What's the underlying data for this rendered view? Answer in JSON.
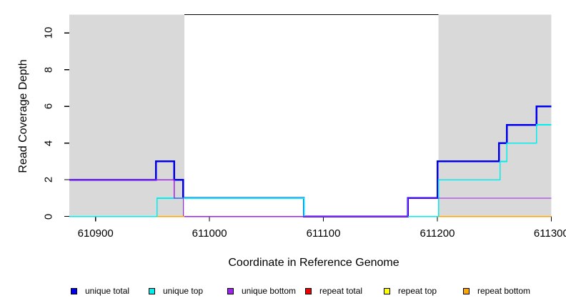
{
  "chart_data": {
    "type": "line",
    "subtype": "step-coverage",
    "title": "",
    "xlabel": "Coordinate in Reference Genome",
    "ylabel": "Read Coverage Depth",
    "xlim": [
      610877,
      611300
    ],
    "ylim": [
      0,
      11.1
    ],
    "x_ticks": [
      610900,
      611000,
      611100,
      611200,
      611300
    ],
    "y_ticks": [
      0,
      2,
      4,
      6,
      8,
      10
    ],
    "grid": false,
    "background_color": "#ffffff",
    "repeat_region_color": "#d9d9d9",
    "repeat_regions": [
      {
        "x1": 610877,
        "x2": 610978
      },
      {
        "x1": 611201,
        "x2": 611300
      }
    ],
    "unique_region_marker": {
      "x1": 610978,
      "x2": 611201,
      "y": 11.0,
      "color": "#000000"
    },
    "series": [
      {
        "name": "unique total",
        "color": "#0000ee",
        "width": 2.5,
        "segments": [
          [
            [
              610877,
              2
            ],
            [
              610953,
              2
            ],
            [
              610953,
              3
            ],
            [
              610969,
              3
            ],
            [
              610969,
              2
            ],
            [
              610977,
              2
            ],
            [
              610977,
              1
            ],
            [
              611083,
              1
            ],
            [
              611083,
              0
            ],
            [
              611174,
              0
            ],
            [
              611174,
              1
            ],
            [
              611200,
              1
            ],
            [
              611200,
              3
            ],
            [
              611254,
              3
            ],
            [
              611254,
              4
            ],
            [
              611261,
              4
            ],
            [
              611261,
              5
            ],
            [
              611287,
              5
            ],
            [
              611287,
              6
            ],
            [
              611300,
              6
            ]
          ]
        ]
      },
      {
        "name": "unique top",
        "color": "#00eeee",
        "width": 1.7,
        "segments": [
          [
            [
              610877,
              0
            ],
            [
              610954,
              0
            ],
            [
              610954,
              1
            ],
            [
              611083,
              1
            ],
            [
              611083,
              0
            ],
            [
              611201,
              0
            ],
            [
              611201,
              2
            ],
            [
              611255,
              2
            ],
            [
              611255,
              3
            ],
            [
              611261,
              3
            ],
            [
              611261,
              4
            ],
            [
              611287,
              4
            ],
            [
              611287,
              5
            ],
            [
              611300,
              5
            ]
          ]
        ]
      },
      {
        "name": "unique bottom",
        "color": "#a020f0",
        "width": 1.3,
        "segments": [
          [
            [
              610877,
              2
            ],
            [
              610969,
              2
            ],
            [
              610969,
              1
            ],
            [
              610977,
              1
            ],
            [
              610977,
              0
            ],
            [
              611174,
              0
            ],
            [
              611174,
              1
            ],
            [
              611300,
              1
            ]
          ]
        ]
      },
      {
        "name": "repeat total",
        "color": "#ee0000",
        "width": 1.3,
        "segments": []
      },
      {
        "name": "repeat top",
        "color": "#ffff00",
        "width": 1.3,
        "segments": []
      },
      {
        "name": "repeat bottom",
        "color": "#ffa500",
        "width": 1.5,
        "segments": [
          [
            [
              610954,
              0
            ],
            [
              610978,
              0
            ]
          ],
          [
            [
              611201,
              0
            ],
            [
              611300,
              0
            ]
          ]
        ]
      }
    ],
    "legend": [
      {
        "label": "unique total",
        "color": "#0000ee"
      },
      {
        "label": "unique top",
        "color": "#00eeee"
      },
      {
        "label": "unique bottom",
        "color": "#a020f0"
      },
      {
        "label": "repeat total",
        "color": "#ee0000"
      },
      {
        "label": "repeat top",
        "color": "#ffff00"
      },
      {
        "label": "repeat bottom",
        "color": "#ffa500"
      }
    ]
  }
}
